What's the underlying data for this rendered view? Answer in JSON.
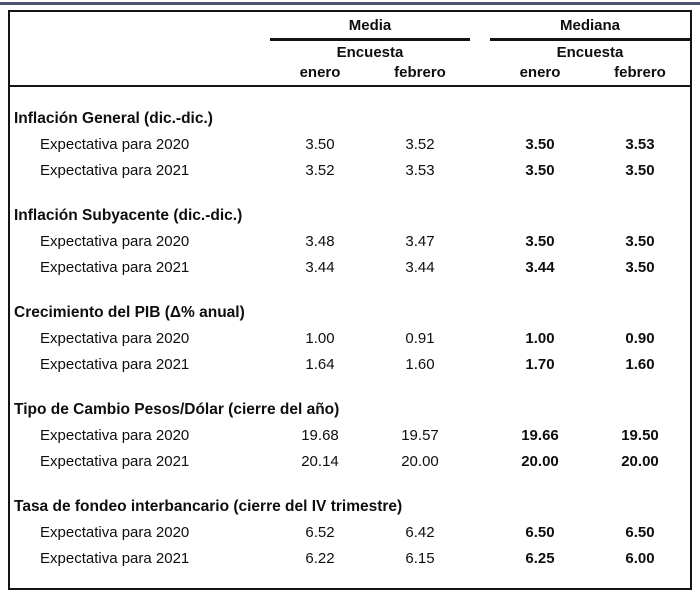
{
  "colors": {
    "background": "#ffffff",
    "text": "#0e0e0e",
    "table_border": "#141414",
    "top_rule": "#4a5470"
  },
  "header": {
    "groups": [
      {
        "title": "Media",
        "subtitle": "Encuesta",
        "columns": [
          "enero",
          "febrero"
        ]
      },
      {
        "title": "Mediana",
        "subtitle": "Encuesta",
        "columns": [
          "enero",
          "febrero"
        ]
      }
    ]
  },
  "sections": [
    {
      "title": "Inflación General (dic.-dic.)",
      "rows": [
        {
          "label": "Expectativa para 2020",
          "values": [
            "3.50",
            "3.52",
            "3.50",
            "3.53"
          ]
        },
        {
          "label": "Expectativa para 2021",
          "values": [
            "3.52",
            "3.53",
            "3.50",
            "3.50"
          ]
        }
      ]
    },
    {
      "title": "Inflación Subyacente (dic.-dic.)",
      "rows": [
        {
          "label": "Expectativa para 2020",
          "values": [
            "3.48",
            "3.47",
            "3.50",
            "3.50"
          ]
        },
        {
          "label": "Expectativa para 2021",
          "values": [
            "3.44",
            "3.44",
            "3.44",
            "3.50"
          ]
        }
      ]
    },
    {
      "title": "Crecimiento del PIB (Δ% anual)",
      "rows": [
        {
          "label": "Expectativa para 2020",
          "values": [
            "1.00",
            "0.91",
            "1.00",
            "0.90"
          ]
        },
        {
          "label": "Expectativa para 2021",
          "values": [
            "1.64",
            "1.60",
            "1.70",
            "1.60"
          ]
        }
      ]
    },
    {
      "title": "Tipo de Cambio Pesos/Dólar (cierre del año)",
      "rows": [
        {
          "label": "Expectativa para 2020",
          "values": [
            "19.68",
            "19.57",
            "19.66",
            "19.50"
          ]
        },
        {
          "label": "Expectativa para 2021",
          "values": [
            "20.14",
            "20.00",
            "20.00",
            "20.00"
          ]
        }
      ]
    },
    {
      "title": "Tasa de fondeo interbancario (cierre del IV trimestre)",
      "rows": [
        {
          "label": "Expectativa para 2020",
          "values": [
            "6.52",
            "6.42",
            "6.50",
            "6.50"
          ]
        },
        {
          "label": "Expectativa para 2021",
          "values": [
            "6.22",
            "6.15",
            "6.25",
            "6.00"
          ]
        }
      ]
    }
  ]
}
